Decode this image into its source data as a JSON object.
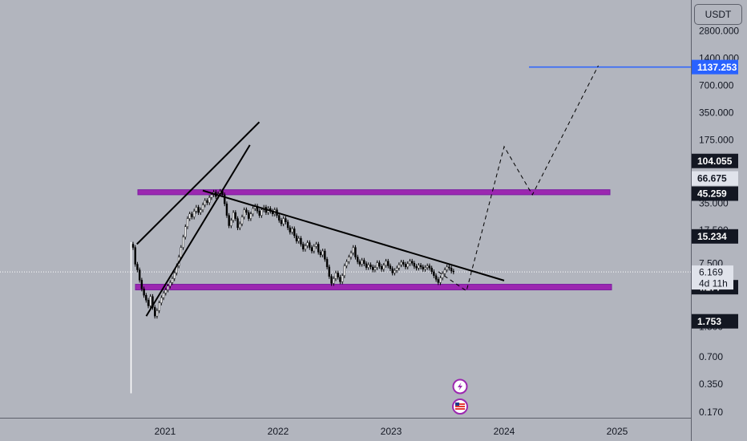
{
  "currency_label": "USDT",
  "theme": {
    "background": "#b2b5be",
    "candle_up": "#ffffff",
    "candle_down": "#000000",
    "zone_color": "#9c27b0",
    "target_line": "#2962ff",
    "trendline": "#000000"
  },
  "chart_data": {
    "type": "candlestick",
    "title": "",
    "xlabel": "",
    "ylabel": "",
    "scale": "log",
    "ylim": [
      0.15,
      3200
    ],
    "x_ticks": [
      "2021",
      "2022",
      "2023",
      "2024",
      "2025"
    ],
    "y_ticks": [
      "2800.000",
      "1400.000",
      "700.000",
      "350.000",
      "175.000",
      "35.000",
      "17.500",
      "7.500",
      "1.500",
      "0.700",
      "0.350",
      "0.170"
    ],
    "last_price": "6.169",
    "countdown": "4d 11h",
    "price_labels": [
      {
        "text": "1137.253",
        "style": "blue",
        "value": 1137.253
      },
      {
        "text": "104.055",
        "style": "dark",
        "value": 104.055
      },
      {
        "text": "66.675",
        "style": "light",
        "value": 66.675
      },
      {
        "text": "45.259",
        "style": "dark",
        "value": 45.259
      },
      {
        "text": "15.234",
        "style": "dark",
        "value": 15.234
      },
      {
        "text": "4.177",
        "style": "dark",
        "value": 4.177
      },
      {
        "text": "1.753",
        "style": "dark",
        "value": 1.753
      }
    ],
    "series": [
      {
        "name": "",
        "weekly_close": [
          11.5,
          7.5,
          6.5,
          5.0,
          4.0,
          3.4,
          3.0,
          2.6,
          3.3,
          2.5,
          2.0,
          2.3,
          2.8,
          3.2,
          3.6,
          3.9,
          4.3,
          4.7,
          5.2,
          6.0,
          7.2,
          9.0,
          11.5,
          15.0,
          19.5,
          24.0,
          27.0,
          25.0,
          29.0,
          32.0,
          28.0,
          30.0,
          34.0,
          38.0,
          36.0,
          41.0,
          44.0,
          47.0,
          42.0,
          45.0,
          48.0,
          44.0,
          35.0,
          26.0,
          20.0,
          23.0,
          28.0,
          24.0,
          19.0,
          21.0,
          25.0,
          30.0,
          28.0,
          24.0,
          27.0,
          31.0,
          33.0,
          29.0,
          26.0,
          30.0,
          32.0,
          28.0,
          31.0,
          29.0,
          27.0,
          30.0,
          26.0,
          23.0,
          21.0,
          24.0,
          22.0,
          19.0,
          17.0,
          18.5,
          15.5,
          13.5,
          14.5,
          12.5,
          11.0,
          12.0,
          13.0,
          11.5,
          10.5,
          11.8,
          12.5,
          10.2,
          9.5,
          10.5,
          8.5,
          7.0,
          5.5,
          4.6,
          5.2,
          6.0,
          5.4,
          4.8,
          5.6,
          7.2,
          8.0,
          9.0,
          10.0,
          11.5,
          9.0,
          8.0,
          7.5,
          8.3,
          7.6,
          6.9,
          7.4,
          7.0,
          6.5,
          6.9,
          7.8,
          7.1,
          6.6,
          7.3,
          8.1,
          7.2,
          6.7,
          6.0,
          6.4,
          6.8,
          7.4,
          7.9,
          7.5,
          7.0,
          7.6,
          8.1,
          7.7,
          7.1,
          6.8,
          7.3,
          7.0,
          6.6,
          6.9,
          7.2,
          6.8,
          6.2,
          5.6,
          5.1,
          4.7,
          5.3,
          5.9,
          6.5,
          7.0,
          6.8,
          6.3,
          6.169
        ]
      }
    ],
    "annotations": [
      {
        "type": "zone",
        "low": 44.0,
        "high": 50.0
      },
      {
        "type": "zone",
        "low": 3.9,
        "high": 4.5
      },
      {
        "type": "horizontal_line",
        "value": 1137.253
      },
      {
        "type": "trendline",
        "from": [
          "2021-05",
          49.0
        ],
        "to": [
          "2024-01",
          4.95
        ]
      },
      {
        "type": "trendline",
        "from": [
          "2020-10",
          12.5
        ],
        "to": [
          "2021-11",
          280
        ]
      },
      {
        "type": "trendline",
        "from": [
          "2020-11",
          2.0
        ],
        "to": [
          "2021-10",
          156
        ]
      },
      {
        "type": "projection",
        "points": [
          [
            "2023-06",
            6.2
          ],
          [
            "2023-09",
            3.8
          ],
          [
            "2024-01",
            150
          ],
          [
            "2024-04",
            44
          ],
          [
            "2024-11",
            1180
          ]
        ]
      }
    ]
  }
}
